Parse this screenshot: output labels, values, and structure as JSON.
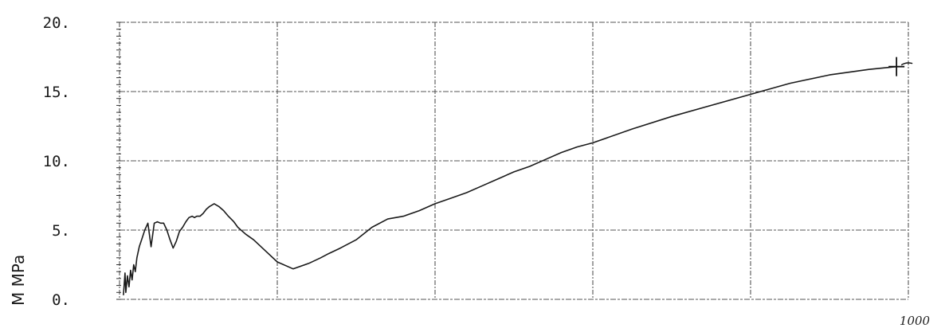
{
  "chart_data": {
    "type": "line",
    "title": "",
    "ylabel": "M  MPa",
    "xlabel": "",
    "x_end_annotation": "1000",
    "ylim": [
      0,
      20
    ],
    "xlim": [
      0,
      1000
    ],
    "y_ticks": [
      "0.",
      "5.",
      "10.",
      "15.",
      "20."
    ],
    "y_tick_values": [
      0,
      5,
      10,
      15,
      20
    ],
    "x_gridlines": [
      0,
      200,
      400,
      600,
      800,
      1000
    ],
    "grid": true,
    "line_color": "#1a1a1a",
    "grid_color": "#555555",
    "end_marker": "plus",
    "series": [
      {
        "x": [
          5,
          7,
          8,
          10,
          12,
          14,
          16,
          18,
          20,
          22,
          25,
          28,
          32,
          36,
          40,
          44,
          48,
          52,
          56,
          60,
          64,
          68,
          72,
          76,
          80,
          84,
          88,
          92,
          95,
          98,
          102,
          106,
          110,
          114,
          120,
          126,
          132,
          138,
          145,
          150,
          160,
          170,
          185,
          200,
          220,
          240,
          255,
          265,
          280,
          300,
          320,
          340,
          360,
          380,
          400,
          420,
          440,
          460,
          480,
          500,
          520,
          540,
          560,
          580,
          600,
          650,
          700,
          750,
          800,
          850,
          900,
          950,
          985
        ],
        "y": [
          0.3,
          1.9,
          0.5,
          1.7,
          0.9,
          2.1,
          1.4,
          2.5,
          2.0,
          3.0,
          3.8,
          4.3,
          5.0,
          5.5,
          3.8,
          5.5,
          5.6,
          5.5,
          5.5,
          5.0,
          4.3,
          3.7,
          4.2,
          4.9,
          5.2,
          5.6,
          5.9,
          6.0,
          5.9,
          6.0,
          6.0,
          6.2,
          6.5,
          6.7,
          6.9,
          6.7,
          6.4,
          6.0,
          5.6,
          5.2,
          4.7,
          4.3,
          3.5,
          2.7,
          2.2,
          2.6,
          3.0,
          3.3,
          3.7,
          4.3,
          5.2,
          5.8,
          6.0,
          6.4,
          6.9,
          7.3,
          7.7,
          8.2,
          8.7,
          9.2,
          9.6,
          10.1,
          10.6,
          11.0,
          11.3,
          12.3,
          13.2,
          14.0,
          14.8,
          15.6,
          16.2,
          16.6,
          16.8
        ]
      }
    ]
  }
}
